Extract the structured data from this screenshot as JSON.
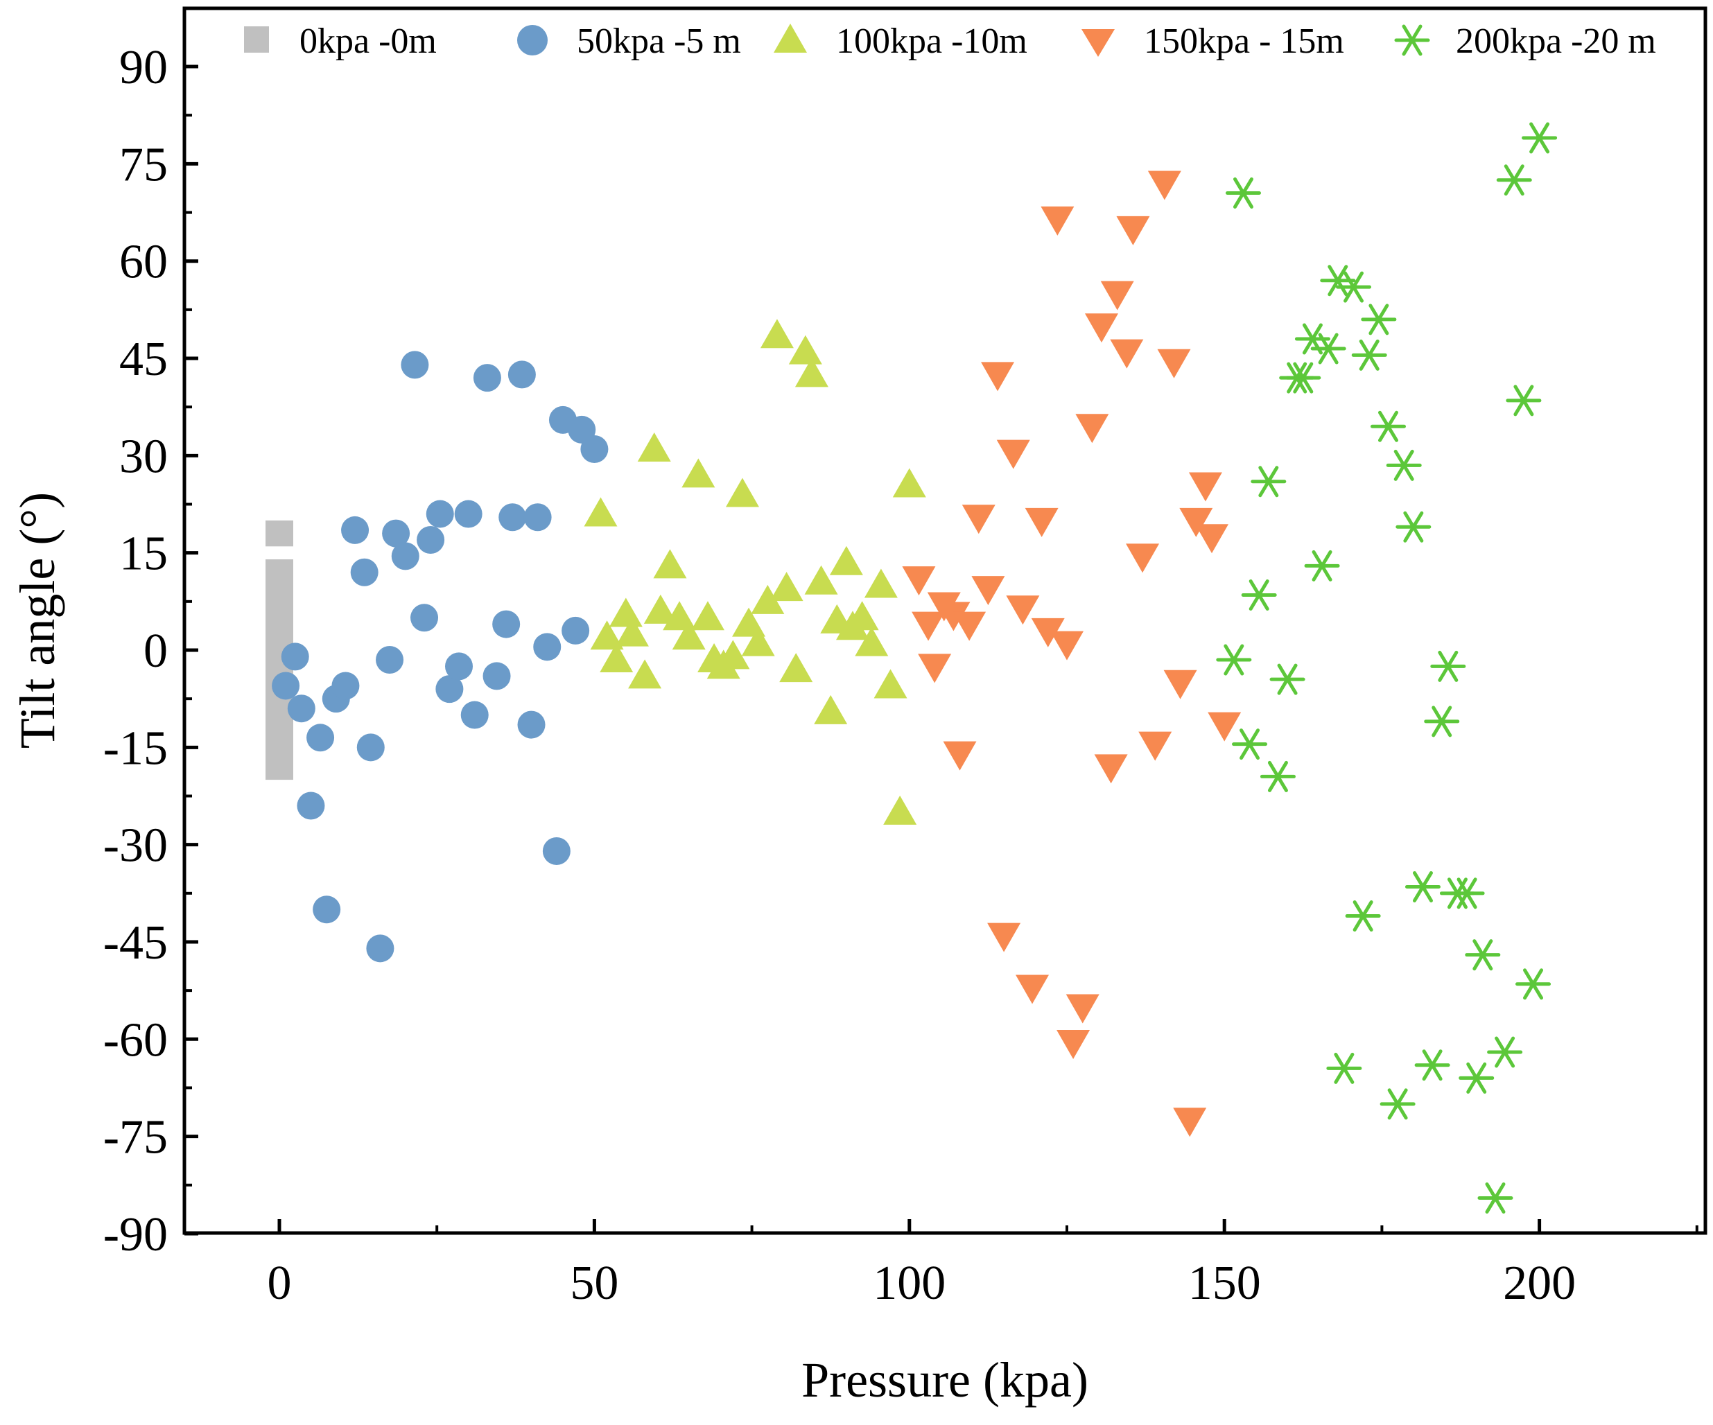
{
  "chart_data": {
    "type": "scatter",
    "title": "",
    "xlabel": "Pressure (kpa)",
    "ylabel": "Tilt angle (°)",
    "xlim": [
      -15,
      225
    ],
    "ylim": [
      -90,
      100
    ],
    "xticks": [
      0,
      50,
      100,
      150,
      200
    ],
    "yticks": [
      -90,
      -75,
      -60,
      -45,
      -30,
      -15,
      0,
      15,
      30,
      45,
      60,
      75,
      90
    ],
    "legend_position": "top",
    "series": [
      {
        "name": "0kpa -0m",
        "marker": "bar",
        "color": "#c0c0c0",
        "segments": [
          [
            -20,
            14
          ],
          [
            16,
            20
          ]
        ]
      },
      {
        "name": "50kpa -5 m",
        "marker": "circle",
        "color": "#6b9bc9",
        "points": [
          [
            1,
            -5.5
          ],
          [
            2.5,
            -1
          ],
          [
            3.5,
            -9
          ],
          [
            5,
            -24
          ],
          [
            6.5,
            -13.5
          ],
          [
            7.5,
            -40
          ],
          [
            9,
            -7.5
          ],
          [
            10.5,
            -5.5
          ],
          [
            12,
            18.5
          ],
          [
            13.5,
            12
          ],
          [
            14.5,
            -15
          ],
          [
            16,
            -46
          ],
          [
            17.5,
            -1.5
          ],
          [
            18.5,
            18
          ],
          [
            20,
            14.5
          ],
          [
            21.5,
            44
          ],
          [
            23,
            5
          ],
          [
            24,
            17
          ],
          [
            25.5,
            21
          ],
          [
            27,
            -6
          ],
          [
            28.5,
            -2.5
          ],
          [
            30,
            21
          ],
          [
            31,
            -10
          ],
          [
            33,
            42
          ],
          [
            34.5,
            -4
          ],
          [
            36,
            4
          ],
          [
            37,
            20.5
          ],
          [
            38.5,
            42.5
          ],
          [
            40,
            -11.5
          ],
          [
            41,
            20.5
          ],
          [
            42.5,
            0.5
          ],
          [
            44,
            -31
          ],
          [
            45,
            35.5
          ],
          [
            47,
            3
          ],
          [
            48,
            34
          ],
          [
            50,
            31
          ]
        ]
      },
      {
        "name": "100kpa -10m",
        "marker": "triangle-up",
        "color": "#c8dc50",
        "points": [
          [
            51,
            21
          ],
          [
            52,
            2
          ],
          [
            53.5,
            -1.5
          ],
          [
            55,
            5.5
          ],
          [
            56,
            2.5
          ],
          [
            58,
            -4
          ],
          [
            59.5,
            31
          ],
          [
            60.5,
            6
          ],
          [
            62,
            13
          ],
          [
            63.5,
            5
          ],
          [
            65,
            2
          ],
          [
            66.5,
            27
          ],
          [
            68,
            5
          ],
          [
            69,
            -1.5
          ],
          [
            70.5,
            -2.5
          ],
          [
            72,
            -1
          ],
          [
            73.5,
            24
          ],
          [
            74.5,
            4
          ],
          [
            76,
            1
          ],
          [
            77.5,
            7.5
          ],
          [
            79,
            48.5
          ],
          [
            80.5,
            9.5
          ],
          [
            82,
            -3
          ],
          [
            83.5,
            46
          ],
          [
            84.5,
            42.5
          ],
          [
            86,
            10.5
          ],
          [
            87.5,
            -9.5
          ],
          [
            88.5,
            4.5
          ],
          [
            90,
            13.5
          ],
          [
            91,
            3.5
          ],
          [
            92.5,
            5
          ],
          [
            94,
            1
          ],
          [
            95.5,
            10
          ],
          [
            97,
            -5.5
          ],
          [
            98.5,
            -25
          ],
          [
            100,
            25.5
          ]
        ]
      },
      {
        "name": "150kpa - 15m",
        "marker": "triangle-down",
        "color": "#f78950",
        "points": [
          [
            101.5,
            11
          ],
          [
            103,
            4
          ],
          [
            104,
            -2.5
          ],
          [
            105.5,
            7
          ],
          [
            107,
            5.5
          ],
          [
            108,
            -16
          ],
          [
            109.5,
            4
          ],
          [
            111,
            20.5
          ],
          [
            112.5,
            9.5
          ],
          [
            114,
            42.5
          ],
          [
            115,
            -44
          ],
          [
            116.5,
            30.5
          ],
          [
            118,
            6.5
          ],
          [
            119.5,
            -52
          ],
          [
            121,
            20
          ],
          [
            122,
            3
          ],
          [
            123.5,
            66.5
          ],
          [
            125,
            1
          ],
          [
            126,
            -60.5
          ],
          [
            127.5,
            -55
          ],
          [
            129,
            34.5
          ],
          [
            130.5,
            50
          ],
          [
            132,
            -18
          ],
          [
            133,
            55
          ],
          [
            134.5,
            46
          ],
          [
            135.5,
            65
          ],
          [
            137,
            14.5
          ],
          [
            139,
            -14.5
          ],
          [
            140.5,
            72
          ],
          [
            142,
            44.5
          ],
          [
            143,
            -5
          ],
          [
            144.5,
            -72.5
          ],
          [
            145.5,
            20
          ],
          [
            147,
            25.5
          ],
          [
            148,
            17.5
          ],
          [
            150,
            -11.5
          ]
        ]
      },
      {
        "name": "200kpa -20 m",
        "marker": "asterisk",
        "color": "#5cc73a",
        "points": [
          [
            151.5,
            -1.5
          ],
          [
            153,
            70.5
          ],
          [
            154,
            -14.5
          ],
          [
            155.5,
            8.5
          ],
          [
            157,
            26
          ],
          [
            158.5,
            -19.5
          ],
          [
            160,
            -4.5
          ],
          [
            161.5,
            42
          ],
          [
            162.5,
            42
          ],
          [
            164,
            48
          ],
          [
            165.5,
            13
          ],
          [
            166.5,
            46.5
          ],
          [
            168,
            57
          ],
          [
            169,
            -64.5
          ],
          [
            170.5,
            56
          ],
          [
            172,
            -41
          ],
          [
            173,
            45.5
          ],
          [
            174.5,
            51
          ],
          [
            176,
            34.5
          ],
          [
            177.5,
            -70
          ],
          [
            178.5,
            28.5
          ],
          [
            180,
            19
          ],
          [
            181.5,
            -36.5
          ],
          [
            183,
            -64
          ],
          [
            184.5,
            -11
          ],
          [
            185.5,
            -2.5
          ],
          [
            187,
            -37.5
          ],
          [
            188.5,
            -37.5
          ],
          [
            190,
            -66
          ],
          [
            191,
            -47
          ],
          [
            193,
            -84.5
          ],
          [
            194.5,
            -62
          ],
          [
            196,
            72.5
          ],
          [
            197.5,
            38.5
          ],
          [
            199,
            -51.5
          ],
          [
            200,
            79
          ]
        ]
      }
    ]
  }
}
